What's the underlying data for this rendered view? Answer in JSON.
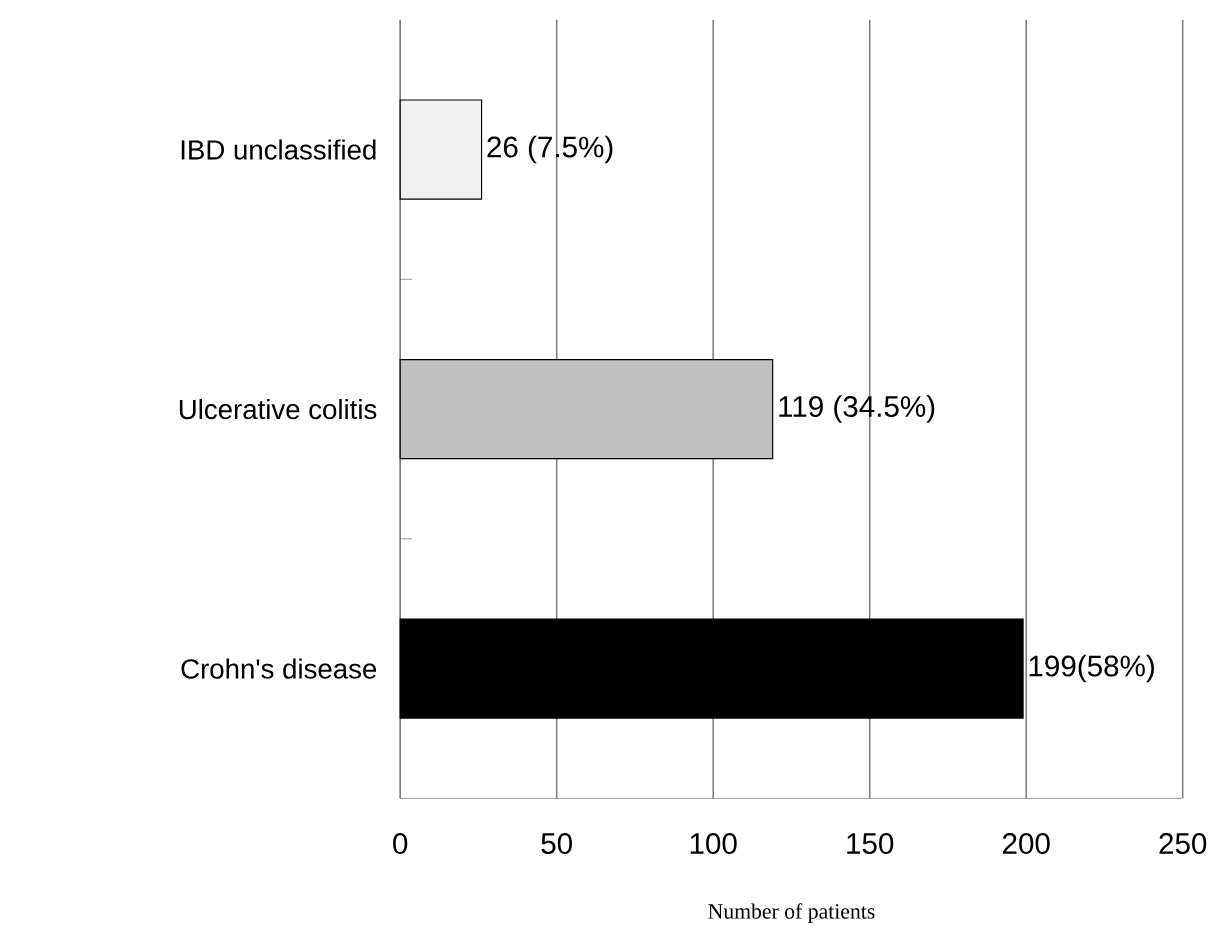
{
  "chart_data": {
    "type": "bar",
    "orientation": "horizontal",
    "xlabel": "Number of patients",
    "categories": [
      "IBD unclassified",
      "Ulcerative colitis",
      "Crohn's disease"
    ],
    "values": [
      26,
      119,
      199
    ],
    "colors": [
      "#f0f0f0",
      "#c0c0c0",
      "#000000"
    ],
    "value_labels": [
      "26 (7.5%)",
      "119 (34.5%)",
      "199(58%)"
    ],
    "xlim": [
      0,
      250
    ],
    "xticks": [
      0,
      50,
      100,
      150,
      200,
      250
    ],
    "grid": "x"
  }
}
